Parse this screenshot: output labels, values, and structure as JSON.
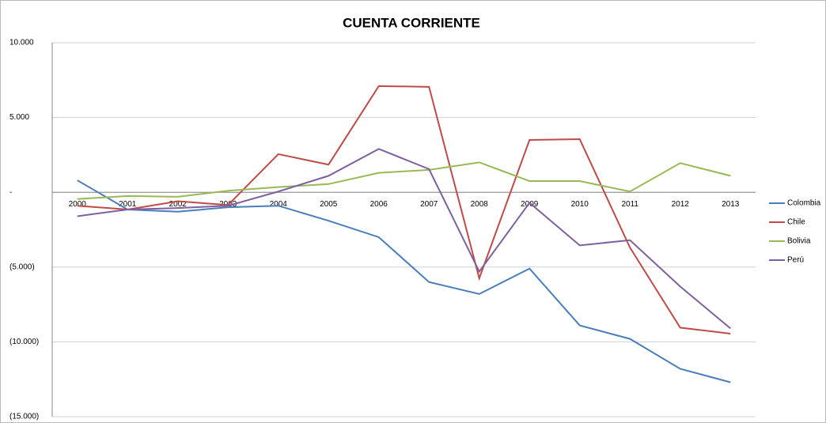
{
  "chart_data": {
    "type": "line",
    "title": "CUENTA CORRIENTE",
    "categories": [
      "2000",
      "2001",
      "2002",
      "2003",
      "2004",
      "2005",
      "2006",
      "2007",
      "2008",
      "2009",
      "2010",
      "2011",
      "2012",
      "2013"
    ],
    "series": [
      {
        "name": "Colombia",
        "color": "#4a7ebb",
        "values": [
          800,
          -1150,
          -1300,
          -1000,
          -900,
          -1900,
          -3000,
          -6000,
          -6800,
          -5100,
          -8900,
          -9800,
          -11800,
          -12700
        ]
      },
      {
        "name": "Chile",
        "color": "#be4b48",
        "values": [
          -900,
          -1150,
          -600,
          -850,
          2550,
          1850,
          7100,
          7050,
          -5750,
          3500,
          3550,
          -3700,
          -9050,
          -9450
        ]
      },
      {
        "name": "Bolivia",
        "color": "#98b954",
        "values": [
          -450,
          -250,
          -300,
          100,
          350,
          550,
          1300,
          1500,
          2000,
          750,
          750,
          50,
          1950,
          1100
        ]
      },
      {
        "name": "Perú",
        "color": "#7d60a0",
        "values": [
          -1600,
          -1150,
          -1050,
          -900,
          50,
          1100,
          2900,
          1550,
          -5300,
          -700,
          -3550,
          -3200,
          -6300,
          -9100
        ]
      }
    ],
    "ylim": [
      -15000,
      10000
    ],
    "yticks": [
      {
        "value": -15000,
        "label": "(15.000)"
      },
      {
        "value": -10000,
        "label": "(10.000)"
      },
      {
        "value": -5000,
        "label": "(5.000)"
      },
      {
        "value": 0,
        "label": "-"
      },
      {
        "value": 5000,
        "label": "5.000"
      },
      {
        "value": 10000,
        "label": "10.000"
      }
    ],
    "grid": true,
    "legend": "right"
  }
}
